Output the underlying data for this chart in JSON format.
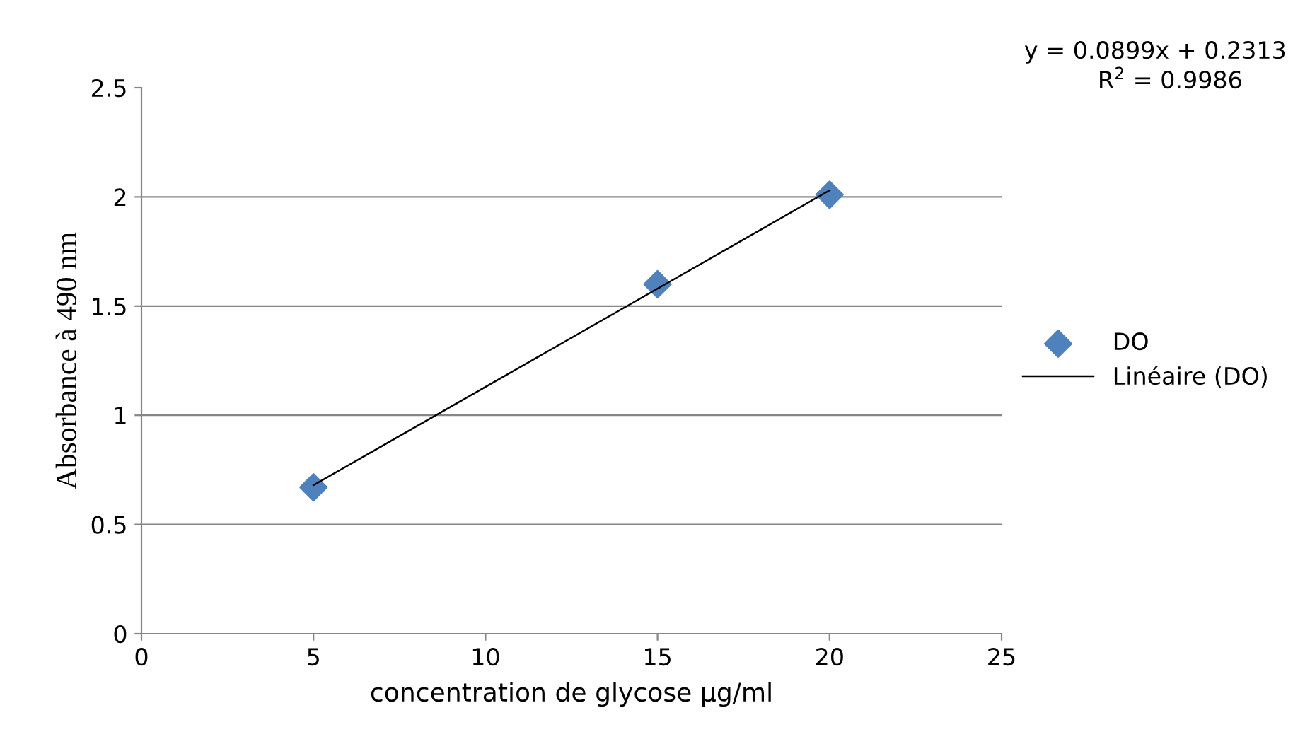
{
  "chart_data": {
    "type": "scatter",
    "xlabel": "concentration de glycose µg/ml",
    "ylabel": "Absorbance à 490 nm",
    "annotations": [
      "y = 0.0899x + 0.2313",
      "R$^{2}$ = 0.9986"
    ],
    "series": [
      {
        "name": "DO",
        "color": "#4f81bd",
        "marker": "diamond",
        "x": [
          5,
          15,
          20
        ],
        "values": [
          0.67,
          1.6,
          2.01
        ]
      },
      {
        "name": "Linéaire (DO)",
        "type": "line",
        "color": "#000000",
        "marker": "none",
        "line_style": "solid",
        "x": [
          5,
          20
        ],
        "values": [
          0.68,
          2.03
        ]
      }
    ],
    "xlim": [
      0,
      25
    ],
    "xticks": [
      0,
      5,
      10,
      15,
      20,
      25
    ],
    "ylim": [
      0,
      2.5
    ],
    "yticks": [
      0,
      0.5,
      1,
      1.5,
      2,
      2.5
    ],
    "grid": "y",
    "legend": "right"
  }
}
